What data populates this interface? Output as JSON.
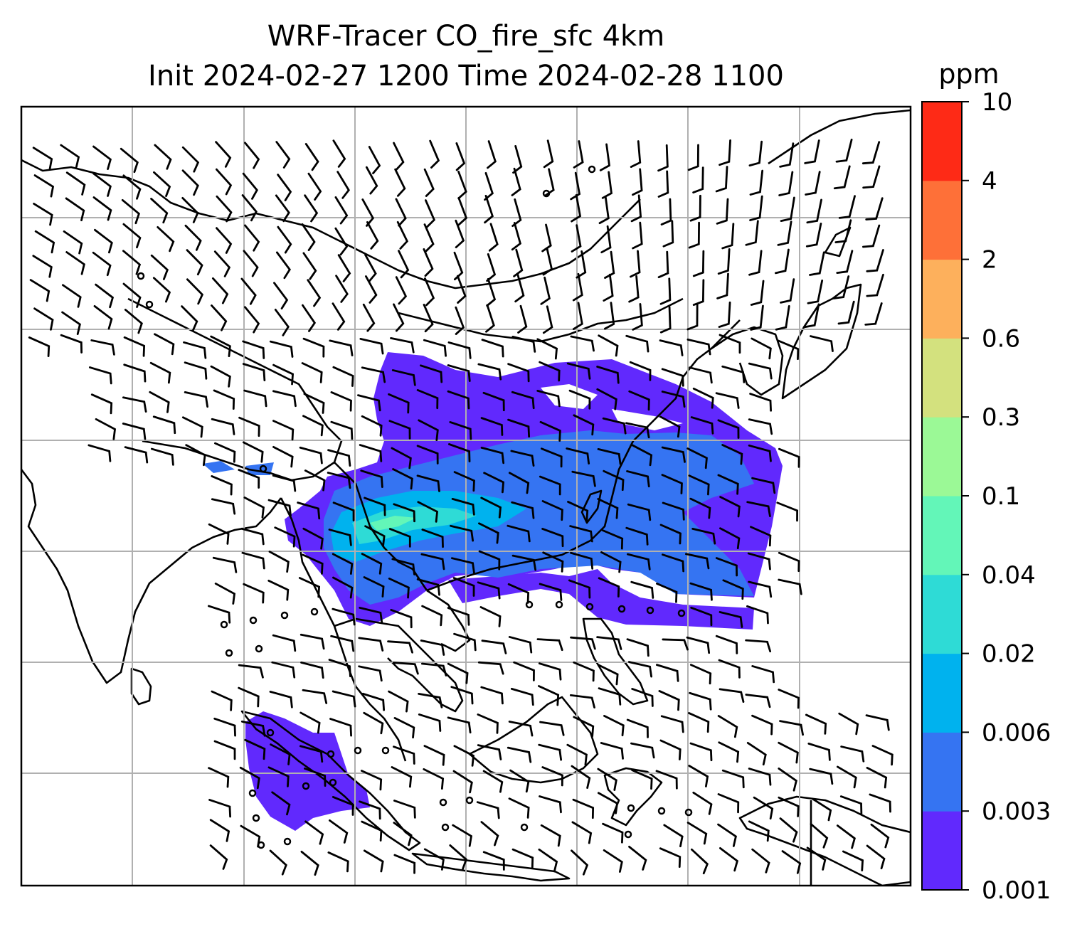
{
  "title": {
    "line1": "WRF-Tracer CO_fire_sfc 4km",
    "line2": "Init 2024-02-27 1200 Time 2024-02-28 1100"
  },
  "colorbar": {
    "unit": "ppm",
    "levels": [
      "0.001",
      "0.003",
      "0.006",
      "0.02",
      "0.04",
      "0.1",
      "0.3",
      "0.6",
      "2",
      "4",
      "10"
    ],
    "colors": [
      "#6129fd",
      "#3574f2",
      "#00b2ee",
      "#2edbd6",
      "#63f6b8",
      "#9bf996",
      "#d3e17e",
      "#fdb05c",
      "#fe7038",
      "#fe2a16"
    ]
  },
  "map": {
    "gridlines": true,
    "overlay": "wind barbs",
    "field": "CO_fire_sfc"
  }
}
